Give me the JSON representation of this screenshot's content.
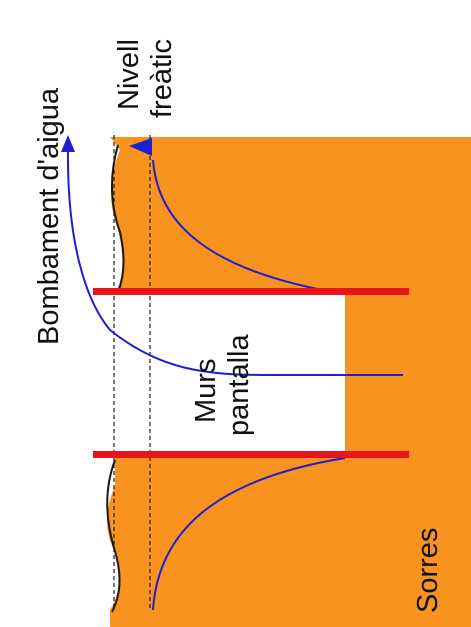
{
  "labels": {
    "pumping": "Bombament d'aigua",
    "water_table_line1": "Nivell",
    "water_table_line2": "freàtic",
    "walls_line1": "Murs",
    "walls_line2": "pantalla",
    "soil": "Sorres"
  },
  "colors": {
    "sand": "#f7931e",
    "wall": "#e8141b",
    "water": "#1f1fd1",
    "line": "#1a1a1a",
    "background": "#ffffff"
  },
  "icons": {
    "pump_arrow": "arrow-up-icon",
    "water_table_marker": "triangle-left-icon"
  }
}
